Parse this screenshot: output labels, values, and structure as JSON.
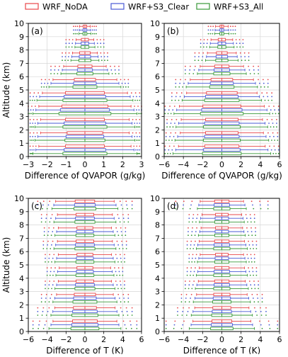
{
  "legend": [
    {
      "name": "WRF_NoDA",
      "color": "#e8474a"
    },
    {
      "name": "WRF+S3_Clear",
      "color": "#4a5bd6"
    },
    {
      "name": "WRF+S3_All",
      "color": "#3a9a3a"
    }
  ],
  "chart_data": [
    {
      "type": "box",
      "panel_label": "(a)",
      "xlabel": "Difference of QVAPOR (g/kg)",
      "ylabel": "Altitude (km)",
      "xlim": [
        -3,
        3
      ],
      "ylim": [
        0,
        10
      ],
      "xticks": [
        -3,
        -2,
        -1,
        0,
        1,
        2,
        3
      ],
      "yticks": [
        0,
        1,
        2,
        3,
        4,
        5,
        6,
        7,
        8,
        9,
        10
      ],
      "grid": true,
      "levels": [
        0.5,
        1.5,
        2.5,
        3.5,
        4.5,
        5.5,
        6.5,
        7.5,
        8.5,
        9.5
      ],
      "whisker_half_widths": [
        2.6,
        2.5,
        2.5,
        2.6,
        2.4,
        1.8,
        1.2,
        0.7,
        0.5,
        0.3
      ],
      "box_half_widths": [
        1.1,
        1.0,
        1.1,
        1.3,
        1.1,
        0.6,
        0.4,
        0.3,
        0.2,
        0.1
      ],
      "outlier_extent": [
        2.9,
        2.9,
        2.9,
        3.0,
        2.9,
        2.3,
        1.8,
        1.2,
        1.0,
        0.6
      ]
    },
    {
      "type": "box",
      "panel_label": "(b)",
      "xlabel": "Difference of QVAPOR (g/kg)",
      "ylabel": "",
      "xlim": [
        -6,
        6
      ],
      "ylim": [
        0,
        10
      ],
      "xticks": [
        -6,
        -4,
        -2,
        0,
        2,
        4,
        6
      ],
      "yticks": [
        0,
        1,
        2,
        3,
        4,
        5,
        6,
        7,
        8,
        9,
        10
      ],
      "grid": true,
      "levels": [
        0.5,
        1.5,
        2.5,
        3.5,
        4.5,
        5.5,
        6.5,
        7.5,
        8.5,
        9.5
      ],
      "whisker_half_widths": [
        4.8,
        4.6,
        4.5,
        4.7,
        3.9,
        3.5,
        2.4,
        1.6,
        1.2,
        0.7
      ],
      "box_half_widths": [
        1.9,
        1.8,
        1.8,
        2.1,
        1.7,
        1.2,
        0.8,
        0.6,
        0.4,
        0.2
      ],
      "outlier_extent": [
        5.9,
        5.8,
        5.7,
        5.9,
        5.2,
        4.8,
        3.8,
        2.8,
        2.2,
        1.4
      ]
    },
    {
      "type": "box",
      "panel_label": "(c)",
      "xlabel": "Difference of T (K)",
      "ylabel": "Altitude (km)",
      "xlim": [
        -6,
        6
      ],
      "ylim": [
        0,
        10
      ],
      "xticks": [
        -6,
        -4,
        -2,
        0,
        2,
        4,
        6
      ],
      "yticks": [
        0,
        1,
        2,
        3,
        4,
        5,
        6,
        7,
        8,
        9,
        10
      ],
      "grid": true,
      "levels": [
        0.5,
        1.5,
        2.5,
        3.5,
        4.5,
        5.5,
        6.5,
        7.5,
        8.5,
        9.5
      ],
      "whisker_half_widths": [
        3.6,
        3.4,
        3.2,
        3.0,
        2.9,
        3.0,
        3.1,
        3.0,
        3.1,
        3.3
      ],
      "box_half_widths": [
        1.4,
        1.3,
        1.2,
        1.0,
        0.9,
        0.9,
        1.0,
        0.9,
        1.0,
        1.1
      ],
      "outlier_extent": [
        5.5,
        5.0,
        4.6,
        4.2,
        4.0,
        4.2,
        4.4,
        4.3,
        4.6,
        5.0
      ]
    },
    {
      "type": "box",
      "panel_label": "(d)",
      "xlabel": "Difference of T (K)",
      "ylabel": "",
      "xlim": [
        -6,
        6
      ],
      "ylim": [
        0,
        10
      ],
      "xticks": [
        -6,
        -4,
        -2,
        0,
        2,
        4,
        6
      ],
      "yticks": [
        0,
        1,
        2,
        3,
        4,
        5,
        6,
        7,
        8,
        9,
        10
      ],
      "grid": true,
      "levels": [
        0.5,
        1.5,
        2.5,
        3.5,
        4.5,
        5.5,
        6.5,
        7.5,
        8.5,
        9.5
      ],
      "whisker_half_widths": [
        3.2,
        3.0,
        2.8,
        2.6,
        2.5,
        2.4,
        2.5,
        2.3,
        2.2,
        2.4
      ],
      "box_half_widths": [
        1.1,
        1.0,
        0.9,
        0.8,
        0.8,
        0.7,
        0.8,
        0.7,
        0.7,
        0.8
      ],
      "outlier_extent": [
        5.8,
        4.6,
        4.2,
        3.8,
        3.6,
        3.4,
        3.6,
        3.5,
        3.4,
        4.8
      ]
    }
  ]
}
